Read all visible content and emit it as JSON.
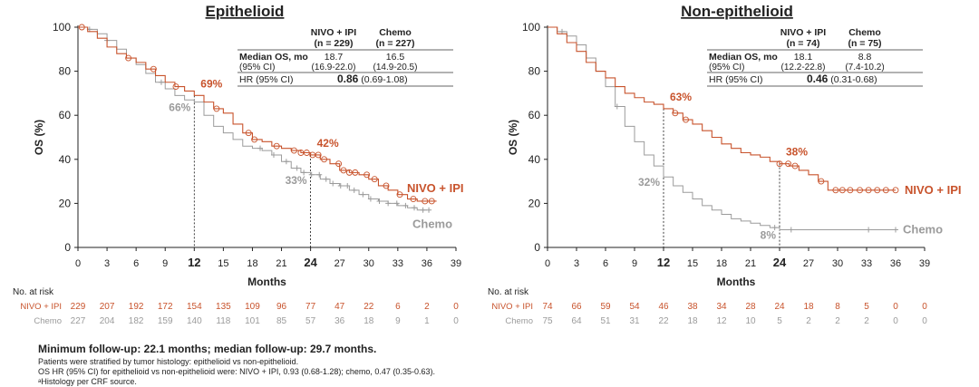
{
  "colors": {
    "nivo": "#C8532C",
    "chemo": "#9B9B9B",
    "axis": "#222222",
    "text": "#222222"
  },
  "common": {
    "xlabel": "Months",
    "ylabel": "OS (%)",
    "risk_header": "No. at risk",
    "col_nivo": "NIVO + IPI",
    "col_chemo": "Chemo",
    "row_median_label": "Median OS, mo",
    "row_ci_label": "(95% CI)",
    "row_hr_label": "HR (95% CI)",
    "line_label_nivo": "NIVO + IPI",
    "line_label_chemo": "Chemo",
    "risk_label_nivo": "NIVO + IPI",
    "risk_label_chemo": "Chemo"
  },
  "footer": {
    "line1": "Minimum follow-up: 22.1 months; median follow-up: 29.7 months.",
    "line2": "Patients were stratified by tumor histology: epithelioid vs non-epithelioid.",
    "line3": "OS HR (95% CI) for epithelioid vs non-epithelioid were: NIVO + IPI, 0.93 (0.68-1.28); chemo, 0.47 (0.35-0.63).",
    "line4": "ᵃHistology per CRF source."
  },
  "chart_data": [
    {
      "type": "line",
      "title": "Epithelioid",
      "xlabel": "Months",
      "ylabel": "OS (%)",
      "xlim": [
        0,
        39
      ],
      "ylim": [
        0,
        100
      ],
      "xticks": [
        0,
        3,
        6,
        9,
        12,
        15,
        18,
        21,
        24,
        27,
        30,
        33,
        36,
        39
      ],
      "xticks_bold": [
        12,
        24
      ],
      "yticks": [
        0,
        20,
        40,
        60,
        80,
        100
      ],
      "table": {
        "n_nivo": "(n = 229)",
        "n_chemo": "(n = 227)",
        "median_nivo": "18.7",
        "median_chemo": "16.5",
        "ci_nivo": "(16.9-22.0)",
        "ci_chemo": "(14.9-20.5)",
        "hr_value": "0.86",
        "hr_ci": "(0.69-1.08)"
      },
      "annotations": [
        {
          "text": "69%",
          "series": "nivo",
          "x": 12,
          "y": 69
        },
        {
          "text": "66%",
          "series": "chemo",
          "x": 12,
          "y": 66
        },
        {
          "text": "42%",
          "series": "nivo",
          "x": 24,
          "y": 42
        },
        {
          "text": "33%",
          "series": "chemo",
          "x": 24,
          "y": 33
        }
      ],
      "series": [
        {
          "name": "NIVO + IPI",
          "key": "nivo",
          "x": [
            0,
            1,
            2,
            3,
            4,
            5,
            6,
            7,
            8,
            9,
            10,
            11,
            12,
            13,
            14,
            15,
            16,
            17,
            18,
            19,
            20,
            21,
            22,
            23,
            24,
            25,
            26,
            27,
            28,
            29,
            30,
            31,
            32,
            33,
            34,
            35,
            36,
            37
          ],
          "y": [
            100,
            98,
            95,
            91,
            88,
            86,
            84,
            81,
            78,
            75,
            73,
            71,
            69,
            66,
            63,
            61,
            56,
            52,
            49,
            48,
            46,
            45,
            44,
            43,
            42,
            40,
            38,
            35,
            34,
            33,
            31,
            28,
            26,
            24,
            22,
            21,
            21,
            21
          ],
          "censor_x": [
            0.4,
            5.2,
            7.8,
            10.1,
            14.3,
            17.6,
            18.2,
            20.5,
            22.3,
            23.0,
            23.6,
            24.2,
            24.8,
            25.4,
            26.9,
            27.4,
            28.0,
            28.6,
            29.8,
            30.6,
            31.8,
            33.2,
            34.6,
            35.8,
            36.5
          ]
        },
        {
          "name": "Chemo",
          "key": "chemo",
          "x": [
            0,
            1,
            2,
            3,
            4,
            5,
            6,
            7,
            8,
            9,
            10,
            11,
            12,
            13,
            14,
            15,
            16,
            17,
            18,
            19,
            20,
            21,
            22,
            23,
            24,
            25,
            26,
            27,
            28,
            29,
            30,
            31,
            32,
            33,
            34,
            35,
            36
          ],
          "y": [
            100,
            99,
            97,
            94,
            90,
            86,
            83,
            79,
            75,
            72,
            69,
            67,
            66,
            60,
            55,
            52,
            49,
            46,
            45,
            44,
            42,
            39,
            36,
            34,
            33,
            31,
            29,
            28,
            26,
            24,
            22,
            21,
            20,
            19,
            18,
            17,
            17
          ],
          "censor_x": [
            1.2,
            3.0,
            8.6,
            18.8,
            20.2,
            21.5,
            22.6,
            23.3,
            24.1,
            24.9,
            25.6,
            26.3,
            27.1,
            27.8,
            28.5,
            29.4,
            30.2,
            31.1,
            32.0,
            32.9,
            33.8,
            34.7,
            35.6,
            36.2
          ]
        }
      ],
      "risk": {
        "months": [
          0,
          3,
          6,
          9,
          12,
          15,
          18,
          21,
          24,
          27,
          30,
          33,
          36,
          39
        ],
        "nivo": [
          229,
          207,
          192,
          172,
          154,
          135,
          109,
          96,
          77,
          47,
          22,
          6,
          2,
          0
        ],
        "chemo": [
          227,
          204,
          182,
          159,
          140,
          118,
          101,
          85,
          57,
          36,
          18,
          9,
          1,
          0
        ]
      }
    },
    {
      "type": "line",
      "title": "Non-epithelioid",
      "xlabel": "Months",
      "ylabel": "OS (%)",
      "xlim": [
        0,
        39
      ],
      "ylim": [
        0,
        100
      ],
      "xticks": [
        0,
        3,
        6,
        9,
        12,
        15,
        18,
        21,
        24,
        27,
        30,
        33,
        36,
        39
      ],
      "xticks_bold": [
        12,
        24
      ],
      "yticks": [
        0,
        20,
        40,
        60,
        80,
        100
      ],
      "table": {
        "n_nivo": "(n = 74)",
        "n_chemo": "(n = 75)",
        "median_nivo": "18.1",
        "median_chemo": "8.8",
        "ci_nivo": "(12.2-22.8)",
        "ci_chemo": "(7.4-10.2)",
        "hr_value": "0.46",
        "hr_ci": "(0.31-0.68)"
      },
      "annotations": [
        {
          "text": "63%",
          "series": "nivo",
          "x": 12,
          "y": 63
        },
        {
          "text": "32%",
          "series": "chemo",
          "x": 12,
          "y": 32
        },
        {
          "text": "38%",
          "series": "nivo",
          "x": 24,
          "y": 38
        },
        {
          "text": "8%",
          "series": "chemo",
          "x": 24,
          "y": 8
        }
      ],
      "series": [
        {
          "name": "NIVO + IPI",
          "key": "nivo",
          "x": [
            0,
            1,
            2,
            3,
            4,
            5,
            6,
            7,
            8,
            9,
            10,
            11,
            12,
            13,
            14,
            15,
            16,
            17,
            18,
            19,
            20,
            21,
            22,
            23,
            24,
            25,
            26,
            27,
            28,
            29,
            30,
            31,
            32,
            33,
            34,
            35,
            36
          ],
          "y": [
            100,
            97,
            93,
            89,
            84,
            80,
            77,
            73,
            70,
            68,
            66,
            65,
            63,
            61,
            58,
            56,
            53,
            50,
            47,
            45,
            43,
            42,
            41,
            39,
            38,
            37,
            35,
            33,
            30,
            26,
            26,
            26,
            26,
            26,
            26,
            26,
            26
          ],
          "censor_x": [
            13.2,
            14.3,
            24.0,
            24.9,
            25.6,
            28.3,
            29.8,
            30.5,
            31.3,
            32.3,
            33.2,
            34.1,
            35.0,
            36.0
          ]
        },
        {
          "name": "Chemo",
          "key": "chemo",
          "x": [
            0,
            1,
            2,
            3,
            4,
            5,
            6,
            7,
            8,
            9,
            10,
            11,
            12,
            13,
            14,
            15,
            16,
            17,
            18,
            19,
            20,
            21,
            22,
            23,
            24,
            25,
            26,
            27,
            28,
            29,
            30,
            31,
            32,
            33,
            34,
            35,
            36
          ],
          "y": [
            100,
            98,
            96,
            92,
            86,
            80,
            73,
            64,
            55,
            48,
            42,
            37,
            32,
            28,
            25,
            22,
            19,
            17,
            15,
            13,
            12,
            11,
            10,
            9,
            8,
            8,
            8,
            8,
            8,
            8,
            8,
            8,
            8,
            8,
            8,
            8,
            8
          ],
          "censor_x": [
            1.5,
            7.2,
            23.5,
            25.2,
            33.2,
            36.0
          ]
        }
      ],
      "risk": {
        "months": [
          0,
          3,
          6,
          9,
          12,
          15,
          18,
          21,
          24,
          27,
          30,
          33,
          36,
          39
        ],
        "nivo": [
          74,
          66,
          59,
          54,
          46,
          38,
          34,
          28,
          24,
          18,
          8,
          5,
          0,
          0
        ],
        "chemo": [
          75,
          64,
          51,
          31,
          22,
          18,
          12,
          10,
          5,
          2,
          2,
          2,
          0,
          0
        ]
      }
    }
  ]
}
